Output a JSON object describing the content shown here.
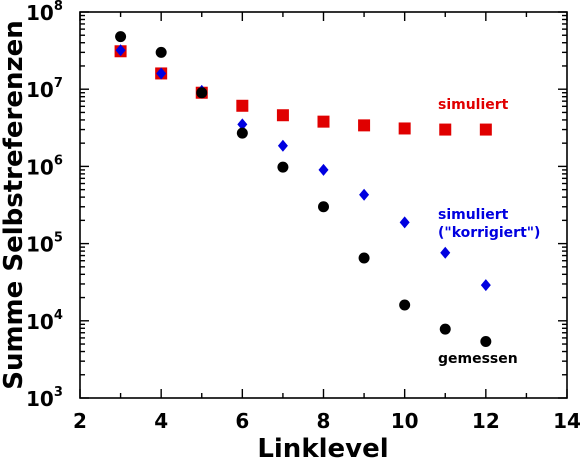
{
  "chart_data": {
    "type": "scatter",
    "xlabel": "Linklevel",
    "ylabel": "Summe Selbstreferenzen",
    "xlim": [
      2,
      14
    ],
    "ylim_exponents": [
      3,
      8
    ],
    "y_scale": "log",
    "x_ticks": [
      "2",
      "4",
      "6",
      "8",
      "10",
      "12",
      "14"
    ],
    "y_ticks": [
      {
        "base": "10",
        "exp": "3"
      },
      {
        "base": "10",
        "exp": "4"
      },
      {
        "base": "10",
        "exp": "5"
      },
      {
        "base": "10",
        "exp": "6"
      },
      {
        "base": "10",
        "exp": "7"
      },
      {
        "base": "10",
        "exp": "8"
      }
    ],
    "grid": false,
    "series": [
      {
        "marker": "square",
        "color": "#e00000",
        "x": [
          3,
          4,
          5,
          6,
          7,
          8,
          9,
          10,
          11,
          12
        ],
        "y": [
          31000000,
          16000000,
          9000000,
          6100000,
          4600000,
          3800000,
          3400000,
          3100000,
          3000000,
          3000000
        ]
      },
      {
        "marker": "diamond",
        "color": "#0000e0",
        "x": [
          3,
          4,
          5,
          6,
          7,
          8,
          9,
          10,
          11,
          12
        ],
        "y": [
          32000000,
          16000000,
          9500000,
          3500000,
          1850000,
          900000,
          430000,
          188000,
          76000,
          29000
        ]
      },
      {
        "marker": "circle",
        "color": "#000000",
        "x": [
          3,
          4,
          5,
          6,
          7,
          8,
          9,
          10,
          11,
          12
        ],
        "y": [
          48000000,
          30000000,
          9000000,
          2700000,
          980000,
          300000,
          65000,
          16000,
          7800,
          5400
        ]
      }
    ],
    "annotations": [
      {
        "lines": [
          "simuliert"
        ],
        "color": "#e00000"
      },
      {
        "lines": [
          "simuliert",
          "(\"korrigiert\")"
        ],
        "color": "#0000e0"
      },
      {
        "lines": [
          "gemessen"
        ],
        "color": "#000000"
      }
    ]
  }
}
